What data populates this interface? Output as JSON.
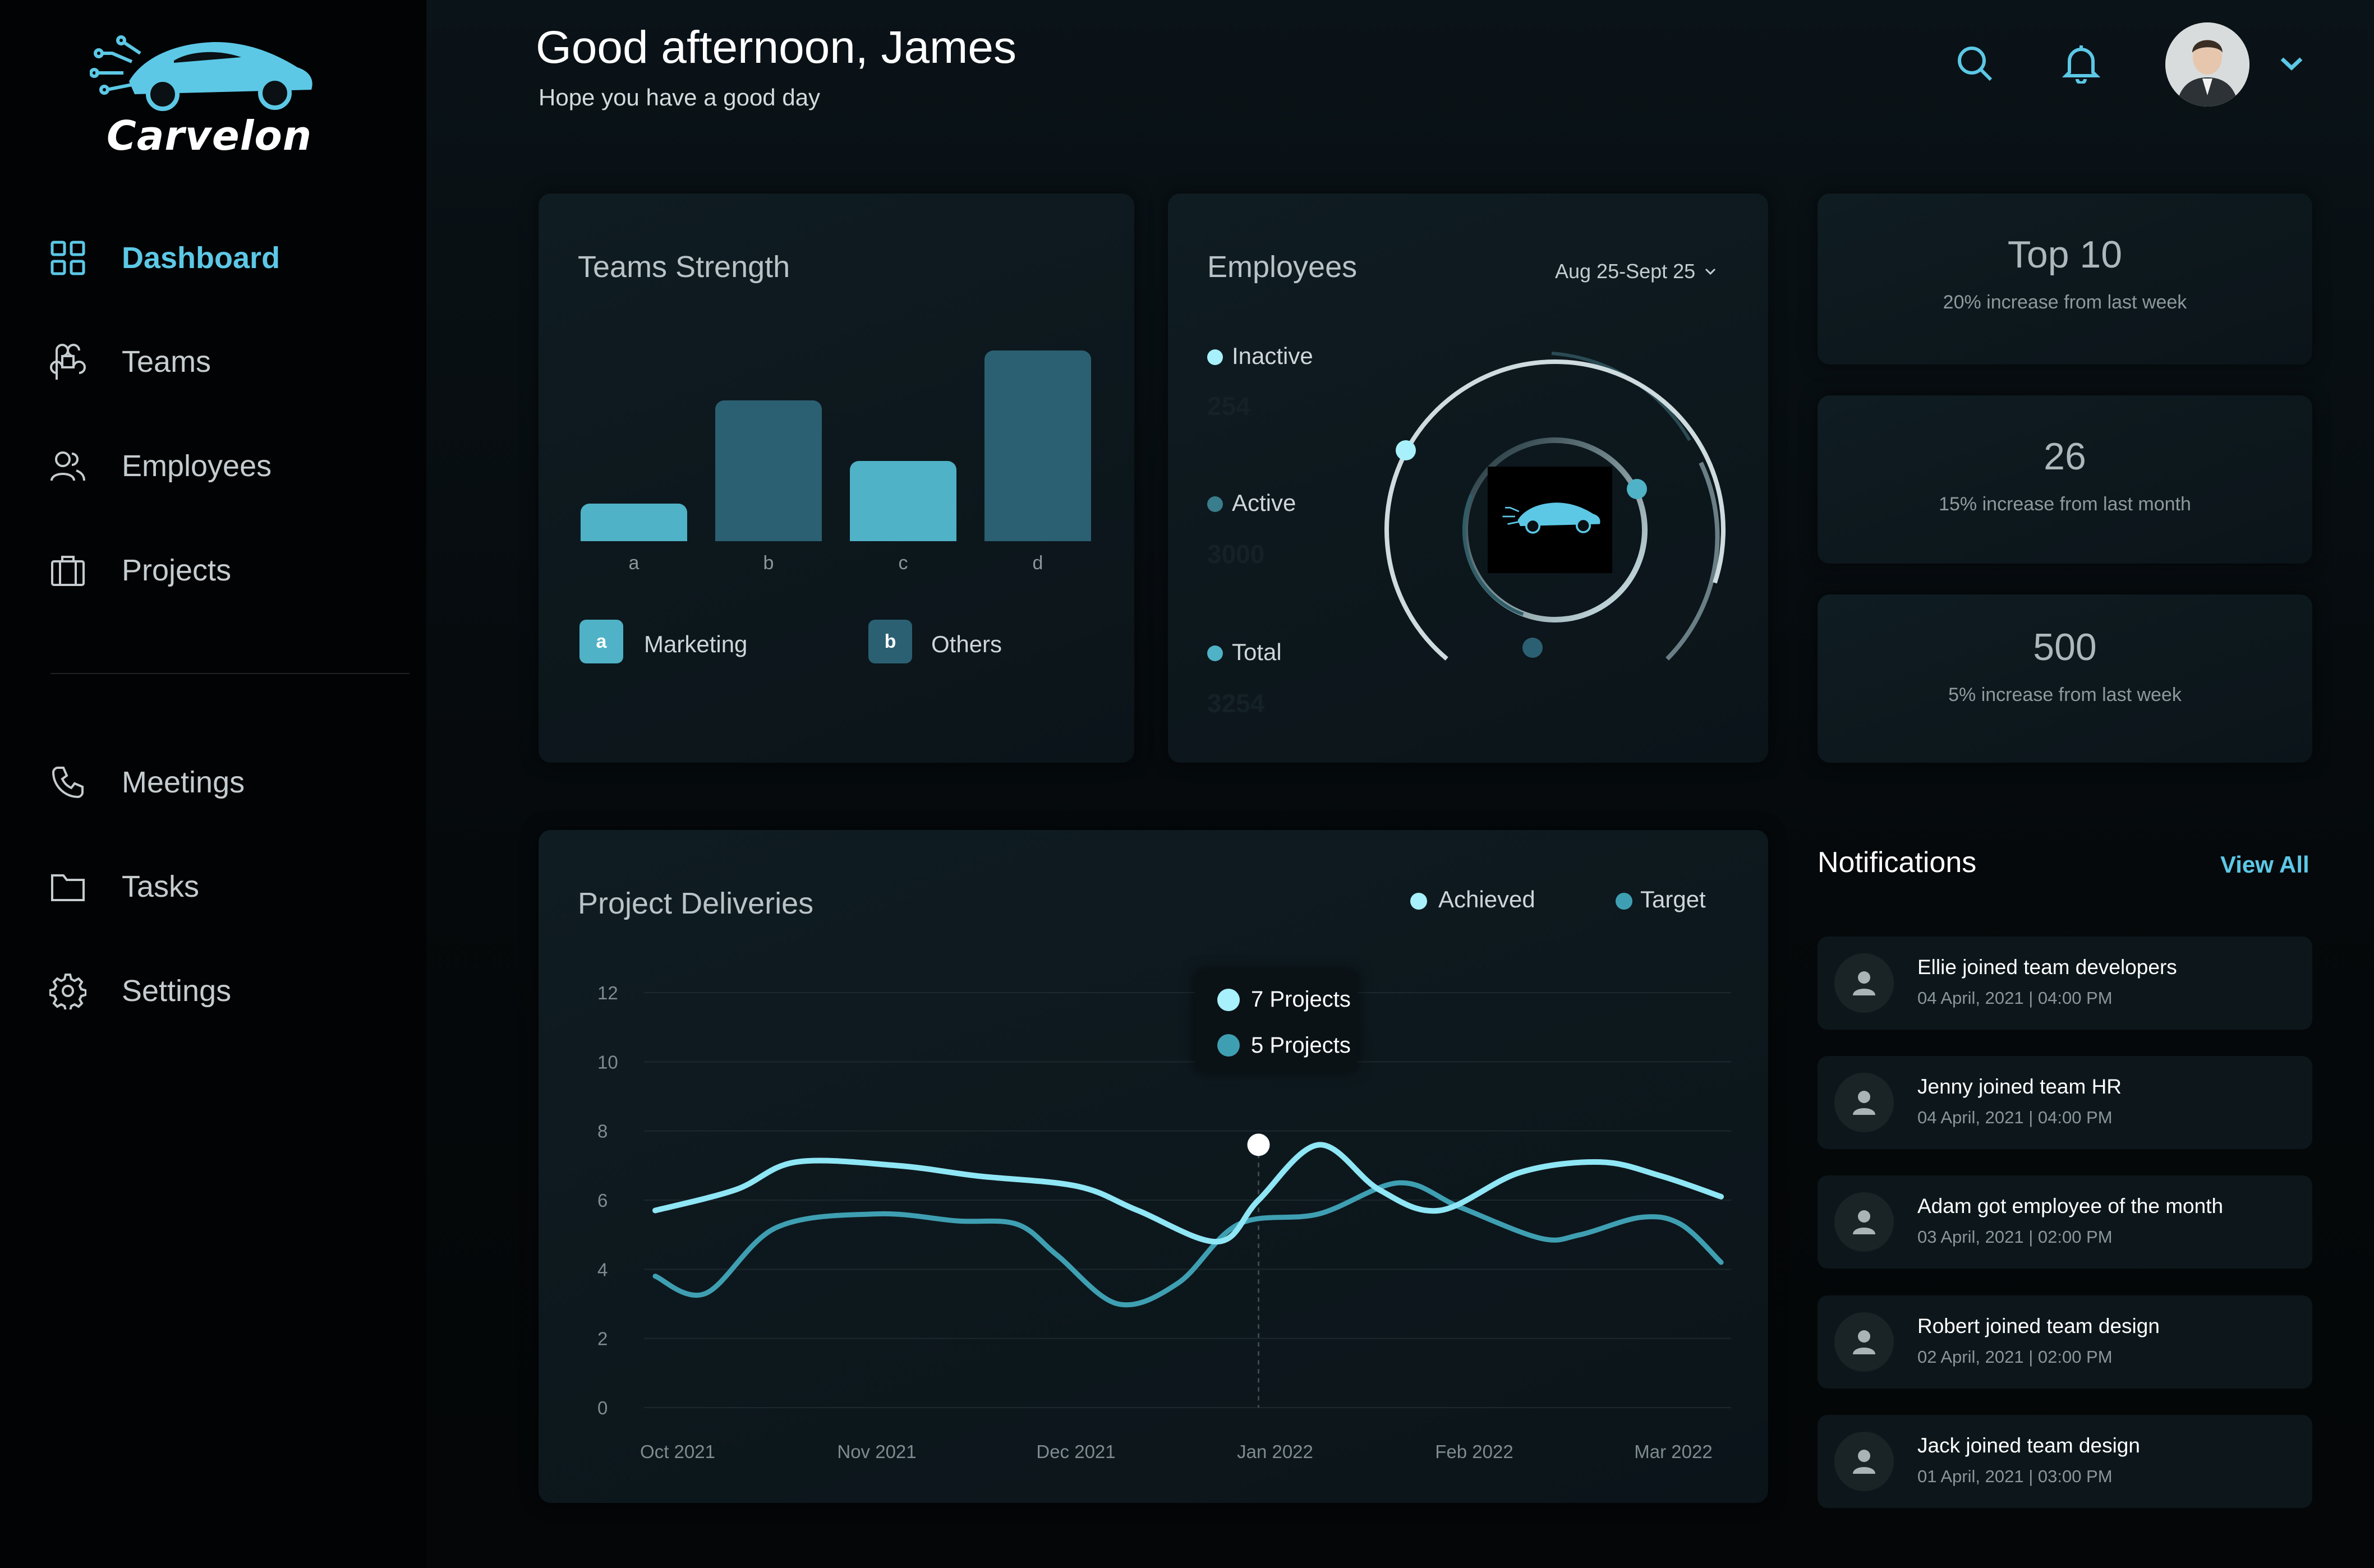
{
  "brand": {
    "name": "Carvelon"
  },
  "sidebar": {
    "items": [
      {
        "label": "Dashboard",
        "icon": "dashboard-grid-icon",
        "active": true
      },
      {
        "label": "Teams",
        "icon": "command-icon"
      },
      {
        "label": "Employees",
        "icon": "users-icon"
      },
      {
        "label": "Projects",
        "icon": "briefcase-icon"
      },
      {
        "label": "Meetings",
        "icon": "phone-icon"
      },
      {
        "label": "Tasks",
        "icon": "folder-icon"
      },
      {
        "label": "Settings",
        "icon": "gear-icon"
      }
    ]
  },
  "header": {
    "greeting": "Good afternoon, James",
    "subtitle": "Hope you have a good day"
  },
  "teams": {
    "title": "Teams Strength",
    "legend": [
      {
        "key": "a",
        "label": "Marketing"
      },
      {
        "key": "b",
        "label": "Others"
      }
    ]
  },
  "employees": {
    "title": "Employees",
    "range": "Aug 25-Sept 25",
    "stats": [
      {
        "label": "Inactive",
        "value": "254"
      },
      {
        "label": "Active",
        "value": "3000"
      },
      {
        "label": "Total",
        "value": "3254"
      }
    ]
  },
  "stat_cards": [
    {
      "value": "Top 10",
      "note": "20% increase from last week"
    },
    {
      "value": "26",
      "note": "15% increase from last month"
    },
    {
      "value": "500",
      "note": "5% increase from last week"
    }
  ],
  "deliveries": {
    "title": "Project Deliveries",
    "tooltip": [
      "7 Projects",
      "5 Projects"
    ]
  },
  "notifications": {
    "title": "Notifications",
    "view_all": "View All",
    "items": [
      {
        "text": "Ellie joined team developers",
        "time": "04 April, 2021 | 04:00 PM"
      },
      {
        "text": "Jenny joined team HR",
        "time": "04 April, 2021 | 04:00 PM"
      },
      {
        "text": "Adam got employee of the month",
        "time": "03 April, 2021 | 02:00 PM"
      },
      {
        "text": "Robert joined team design",
        "time": "02 April, 2021 | 02:00 PM"
      },
      {
        "text": "Jack joined team design",
        "time": "01 April, 2021 | 03:00 PM"
      }
    ]
  },
  "colors": {
    "accent": "#5cc8e6",
    "bar_light": "#4fb2c6",
    "bar_dark": "#2b6072",
    "achieved": "#8fe6f5",
    "target": "#3f9fb2"
  },
  "chart_data": [
    {
      "type": "bar",
      "title": "Teams Strength",
      "categories": [
        "a",
        "b",
        "c",
        "d"
      ],
      "values": [
        1.5,
        5.6,
        3.2,
        7.6
      ],
      "series_colors": [
        "#4fb2c6",
        "#2b6072",
        "#4fb2c6",
        "#2b6072"
      ]
    },
    {
      "type": "line",
      "title": "Project Deliveries",
      "categories": [
        "Oct 2021",
        "Nov 2021",
        "Dec 2021",
        "Jan 2022",
        "Feb 2022",
        "Mar 2022"
      ],
      "ylim": [
        0,
        12
      ],
      "yticks": [
        0,
        2,
        4,
        6,
        8,
        10,
        12
      ],
      "series": [
        {
          "name": "Achieved",
          "x": [
            0,
            0.4,
            0.7,
            1.2,
            1.6,
            2.1,
            2.4,
            2.8,
            3.0,
            3.3,
            3.6,
            3.9,
            4.3,
            4.7,
            5.0,
            5.3
          ],
          "values": [
            5.7,
            6.3,
            7.1,
            7.0,
            6.7,
            6.4,
            5.7,
            4.8,
            6.0,
            7.6,
            6.3,
            5.7,
            6.8,
            7.1,
            6.7,
            6.1
          ]
        },
        {
          "name": "Target",
          "x": [
            0,
            0.25,
            0.6,
            1.1,
            1.5,
            1.8,
            2.0,
            2.3,
            2.6,
            2.9,
            3.3,
            3.7,
            4.0,
            4.4,
            4.6,
            4.9,
            5.1,
            5.3
          ],
          "values": [
            3.8,
            3.3,
            5.2,
            5.6,
            5.4,
            5.3,
            4.4,
            3.0,
            3.6,
            5.3,
            5.6,
            6.5,
            5.8,
            4.9,
            5.0,
            5.5,
            5.3,
            4.2
          ]
        }
      ],
      "highlight": {
        "x": 3.0,
        "y": 7.6
      }
    }
  ]
}
